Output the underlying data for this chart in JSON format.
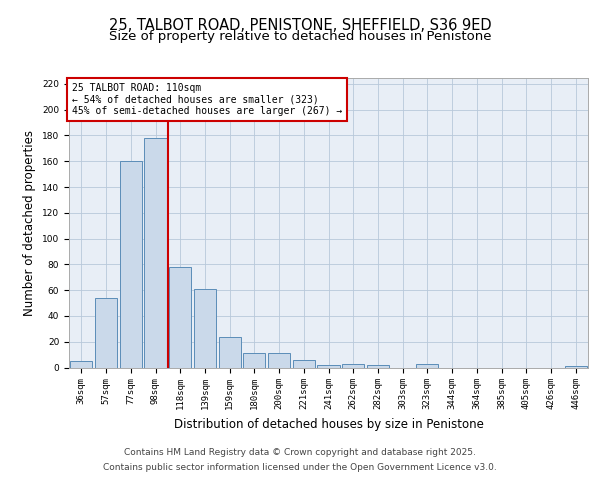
{
  "title_line1": "25, TALBOT ROAD, PENISTONE, SHEFFIELD, S36 9ED",
  "title_line2": "Size of property relative to detached houses in Penistone",
  "xlabel": "Distribution of detached houses by size in Penistone",
  "ylabel": "Number of detached properties",
  "categories": [
    "36sqm",
    "57sqm",
    "77sqm",
    "98sqm",
    "118sqm",
    "139sqm",
    "159sqm",
    "180sqm",
    "200sqm",
    "221sqm",
    "241sqm",
    "262sqm",
    "282sqm",
    "303sqm",
    "323sqm",
    "344sqm",
    "364sqm",
    "385sqm",
    "405sqm",
    "426sqm",
    "446sqm"
  ],
  "values": [
    5,
    54,
    160,
    178,
    78,
    61,
    24,
    11,
    11,
    6,
    2,
    3,
    2,
    0,
    3,
    0,
    0,
    0,
    0,
    0,
    1
  ],
  "bar_color": "#cad9ea",
  "bar_edge_color": "#5b8db8",
  "grid_color": "#b8c8da",
  "background_color": "#e8eef6",
  "vline_x": 4,
  "vline_color": "#cc0000",
  "annotation_text": "25 TALBOT ROAD: 110sqm\n← 54% of detached houses are smaller (323)\n45% of semi-detached houses are larger (267) →",
  "annotation_box_color": "#ffffff",
  "annotation_border_color": "#cc0000",
  "ylim": [
    0,
    225
  ],
  "yticks": [
    0,
    20,
    40,
    60,
    80,
    100,
    120,
    140,
    160,
    180,
    200,
    220
  ],
  "footer_line1": "Contains HM Land Registry data © Crown copyright and database right 2025.",
  "footer_line2": "Contains public sector information licensed under the Open Government Licence v3.0.",
  "title_fontsize": 10.5,
  "subtitle_fontsize": 9.5,
  "tick_fontsize": 6.5,
  "label_fontsize": 8.5,
  "footer_fontsize": 6.5
}
